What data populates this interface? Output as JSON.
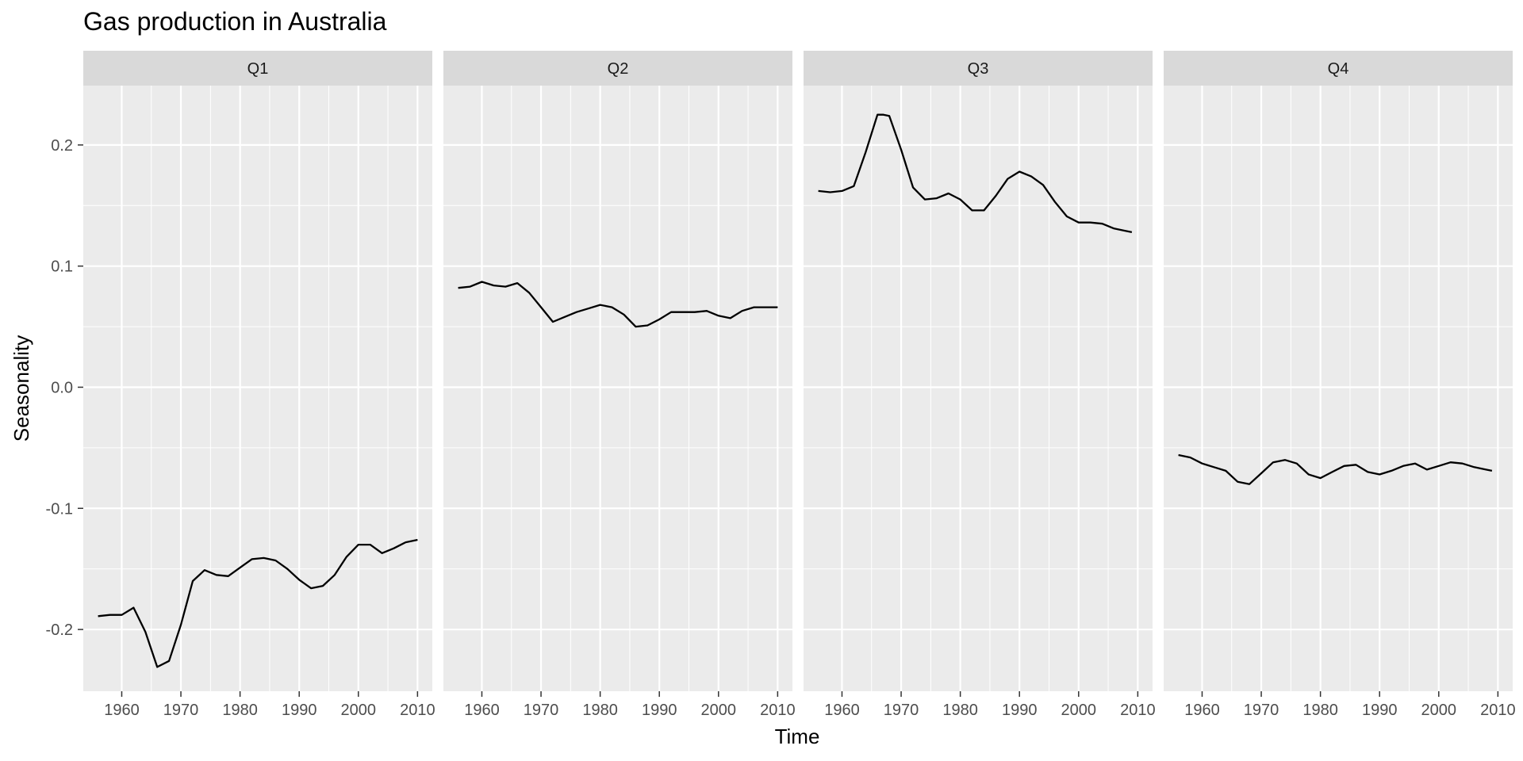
{
  "chart_data": {
    "type": "line",
    "title": "Gas production in Australia",
    "xlabel": "Time",
    "ylabel": "Seasonality",
    "xlim": [
      1953.5,
      2012.5
    ],
    "ylim": [
      -0.251,
      0.249
    ],
    "x_ticks": [
      1960,
      1970,
      1980,
      1990,
      2000,
      2010
    ],
    "x_tick_labels": [
      "1960",
      "1970",
      "1980",
      "1990",
      "2000",
      "2010"
    ],
    "y_ticks": [
      -0.2,
      -0.1,
      0.0,
      0.1,
      0.2
    ],
    "y_tick_labels": [
      "-0.2",
      "-0.1",
      "0.0",
      "0.1",
      "0.2"
    ],
    "grid": true,
    "line_color": "#000000",
    "panel_background": "#ebebeb",
    "strip_background": "#d9d9d9",
    "facets": [
      {
        "label": "Q1",
        "x": [
          1956,
          1958,
          1960,
          1962,
          1964,
          1966,
          1968,
          1970,
          1972,
          1974,
          1976,
          1978,
          1980,
          1982,
          1984,
          1986,
          1988,
          1990,
          1992,
          1994,
          1996,
          1998,
          2000,
          2002,
          2004,
          2006,
          2008,
          2010
        ],
        "values": [
          -0.189,
          -0.188,
          -0.188,
          -0.182,
          -0.202,
          -0.231,
          -0.226,
          -0.196,
          -0.16,
          -0.151,
          -0.155,
          -0.156,
          -0.149,
          -0.142,
          -0.141,
          -0.143,
          -0.15,
          -0.159,
          -0.166,
          -0.164,
          -0.155,
          -0.14,
          -0.13,
          -0.13,
          -0.137,
          -0.133,
          -0.128,
          -0.126
        ]
      },
      {
        "label": "Q2",
        "x": [
          1956,
          1958,
          1960,
          1962,
          1964,
          1966,
          1968,
          1970,
          1972,
          1974,
          1976,
          1978,
          1980,
          1982,
          1984,
          1986,
          1988,
          1990,
          1992,
          1994,
          1996,
          1998,
          2000,
          2002,
          2004,
          2006,
          2008,
          2010
        ],
        "values": [
          0.082,
          0.083,
          0.087,
          0.084,
          0.083,
          0.086,
          0.078,
          0.066,
          0.054,
          0.058,
          0.062,
          0.065,
          0.068,
          0.066,
          0.06,
          0.05,
          0.051,
          0.056,
          0.062,
          0.062,
          0.062,
          0.063,
          0.059,
          0.057,
          0.063,
          0.066,
          0.066,
          0.066
        ]
      },
      {
        "label": "Q3",
        "x": [
          1956,
          1958,
          1960,
          1962,
          1964,
          1966,
          1967,
          1968,
          1970,
          1972,
          1974,
          1976,
          1978,
          1980,
          1982,
          1984,
          1986,
          1988,
          1990,
          1992,
          1994,
          1996,
          1998,
          2000,
          2002,
          2004,
          2006,
          2008,
          2009
        ],
        "values": [
          0.162,
          0.161,
          0.162,
          0.166,
          0.194,
          0.225,
          0.225,
          0.224,
          0.196,
          0.165,
          0.155,
          0.156,
          0.16,
          0.155,
          0.146,
          0.146,
          0.158,
          0.172,
          0.178,
          0.174,
          0.167,
          0.153,
          0.141,
          0.136,
          0.136,
          0.135,
          0.131,
          0.129,
          0.128
        ]
      },
      {
        "label": "Q4",
        "x": [
          1956,
          1958,
          1960,
          1962,
          1964,
          1966,
          1968,
          1970,
          1972,
          1974,
          1976,
          1978,
          1980,
          1982,
          1984,
          1986,
          1988,
          1990,
          1992,
          1994,
          1996,
          1998,
          2000,
          2002,
          2004,
          2006,
          2008,
          2009
        ],
        "values": [
          -0.056,
          -0.058,
          -0.063,
          -0.066,
          -0.069,
          -0.078,
          -0.08,
          -0.071,
          -0.062,
          -0.06,
          -0.063,
          -0.072,
          -0.075,
          -0.07,
          -0.065,
          -0.064,
          -0.07,
          -0.072,
          -0.069,
          -0.065,
          -0.063,
          -0.068,
          -0.065,
          -0.062,
          -0.063,
          -0.066,
          -0.068,
          -0.069
        ]
      }
    ]
  }
}
